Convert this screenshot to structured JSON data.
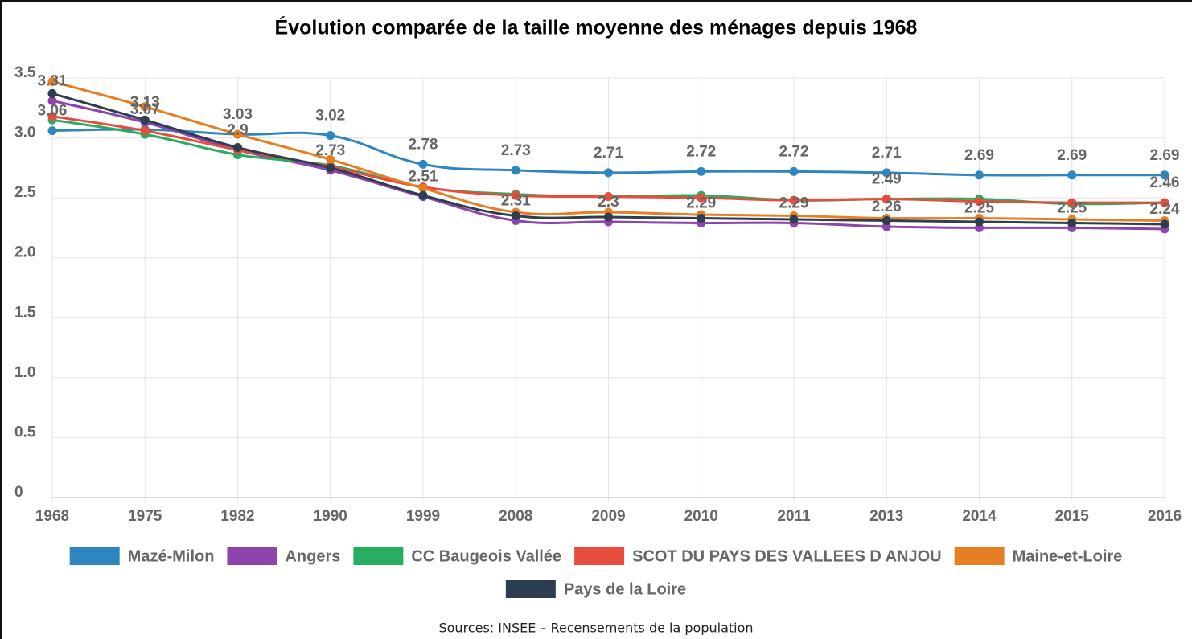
{
  "chart_data": {
    "type": "line",
    "title": "Évolution comparée de la taille moyenne des ménages depuis 1968",
    "source": "Sources: INSEE – Recensements de la population",
    "categories": [
      "1968",
      "1975",
      "1982",
      "1990",
      "1999",
      "2008",
      "2009",
      "2010",
      "2011",
      "2013",
      "2014",
      "2015",
      "2016"
    ],
    "ylim": [
      0,
      3.5
    ],
    "yticks": [
      0,
      0.5,
      {
        "value": 1,
        "label": "1.0"
      },
      1.5,
      {
        "value": 2,
        "label": "2.0"
      },
      2.5,
      {
        "value": 3,
        "label": "3.0"
      },
      3.5
    ],
    "grid": true,
    "legend": "bottom",
    "series": [
      {
        "name": "Mazé-Milon",
        "color": "#2e86c1",
        "data_labels": true,
        "values": [
          3.06,
          3.07,
          3.03,
          3.02,
          2.78,
          2.73,
          2.71,
          2.72,
          2.72,
          2.71,
          2.69,
          2.69,
          2.69
        ]
      },
      {
        "name": "Angers",
        "color": "#8e44ad",
        "data_labels": true,
        "values": [
          3.31,
          3.13,
          2.9,
          2.73,
          2.51,
          2.31,
          2.3,
          2.29,
          2.29,
          2.26,
          2.25,
          2.25,
          2.24
        ]
      },
      {
        "name": "CC Baugeois Vallée",
        "color": "#27ae60",
        "values": [
          3.15,
          3.03,
          2.86,
          2.77,
          2.59,
          2.53,
          2.51,
          2.52,
          2.48,
          2.49,
          2.49,
          2.45,
          2.46
        ],
        "value_labels": [
          null,
          null,
          null,
          null,
          null,
          null,
          null,
          null,
          null,
          "2.49",
          null,
          null,
          "2.46"
        ]
      },
      {
        "name": "SCOT DU PAYS DES VALLEES D ANJOU",
        "color": "#e74c3c",
        "values": [
          3.18,
          3.06,
          2.9,
          2.76,
          2.59,
          2.52,
          2.51,
          2.5,
          2.48,
          2.49,
          2.47,
          2.46,
          2.46
        ]
      },
      {
        "name": "Maine-et-Loire",
        "color": "#e67e22",
        "values": [
          3.47,
          3.26,
          3.03,
          2.82,
          2.58,
          2.38,
          2.38,
          2.36,
          2.35,
          2.33,
          2.33,
          2.32,
          2.31
        ]
      },
      {
        "name": "Pays de la Loire",
        "color": "#2c3e50",
        "values": [
          3.37,
          3.15,
          2.92,
          2.75,
          2.52,
          2.35,
          2.34,
          2.33,
          2.32,
          2.31,
          2.3,
          2.29,
          2.28
        ]
      }
    ]
  }
}
